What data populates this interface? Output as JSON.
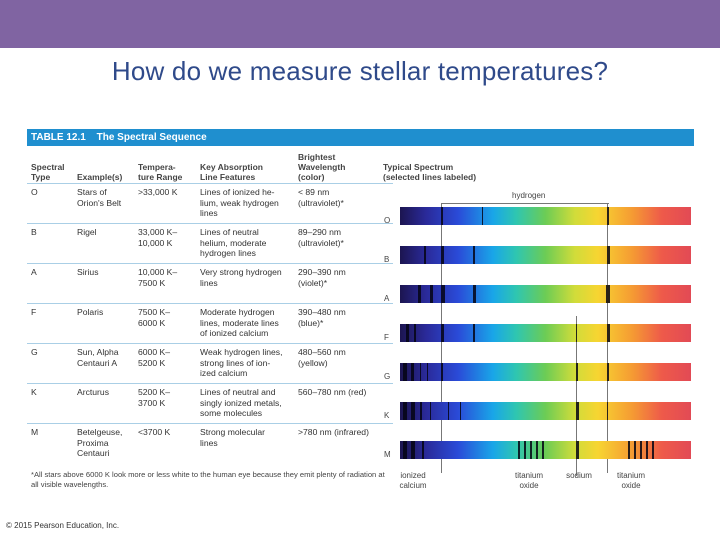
{
  "slide": {
    "title": "How do we measure stellar temperatures?",
    "copyright": "© 2015 Pearson Education, Inc.",
    "accent_color": "#8064a2",
    "title_color": "#2f4a8a"
  },
  "table": {
    "number": "TABLE 12.1",
    "name": "The Spectral Sequence",
    "header_color": "#1f8fcf",
    "columns": {
      "type": "Spectral\nType",
      "examples": "Example(s)",
      "temp": "Tempera-\nture Range",
      "features": "Key Absorption\nLine Features",
      "wavelength": "Brightest\nWavelength\n(color)",
      "spectrum": "Typical Spectrum\n(selected lines labeled)"
    },
    "rows": [
      {
        "type": "O",
        "examples": "Stars of\nOrion's Belt",
        "temp": ">33,000 K",
        "features": "Lines of ionized he-\nlium, weak hydrogen\nlines",
        "wavelength": "< 89 nm\n(ultraviolet)*"
      },
      {
        "type": "B",
        "examples": "Rigel",
        "temp": "33,000 K–\n10,000 K",
        "features": "Lines of neutral\nhelium, moderate\nhydrogen lines",
        "wavelength": "89–290 nm\n(ultraviolet)*"
      },
      {
        "type": "A",
        "examples": "Sirius",
        "temp": "10,000 K–\n7500 K",
        "features": "Very strong hydrogen\nlines",
        "wavelength": "290–390 nm\n(violet)*"
      },
      {
        "type": "F",
        "examples": "Polaris",
        "temp": "7500 K–\n6000 K",
        "features": "Moderate hydrogen\nlines, moderate lines\nof ionized calcium",
        "wavelength": "390–480 nm\n(blue)*"
      },
      {
        "type": "G",
        "examples": "Sun, Alpha\nCentauri A",
        "temp": "6000 K–\n5200 K",
        "features": "Weak hydrogen lines,\nstrong lines of ion-\nized calcium",
        "wavelength": "480–560 nm\n(yellow)"
      },
      {
        "type": "K",
        "examples": "Arcturus",
        "temp": "5200 K–\n3700 K",
        "features": "Lines of neutral and\nsingly ionized metals,\nsome molecules",
        "wavelength": "560–780 nm (red)"
      },
      {
        "type": "M",
        "examples": "Betelgeuse,\nProxima\nCentauri",
        "temp": "<3700 K",
        "features": "Strong molecular\nlines",
        "wavelength": ">780 nm (infrared)"
      }
    ],
    "footnote": "*All stars above 6000 K look more or less white to the human eye because they emit plenty of radiation at all visible wavelengths.",
    "spectrum_labels": {
      "hydrogen": "hydrogen",
      "ionized_calcium": "ionized\ncalcium",
      "titanium_oxide_1": "titanium\noxide",
      "sodium": "sodium",
      "titanium_oxide_2": "titanium\noxide"
    }
  }
}
